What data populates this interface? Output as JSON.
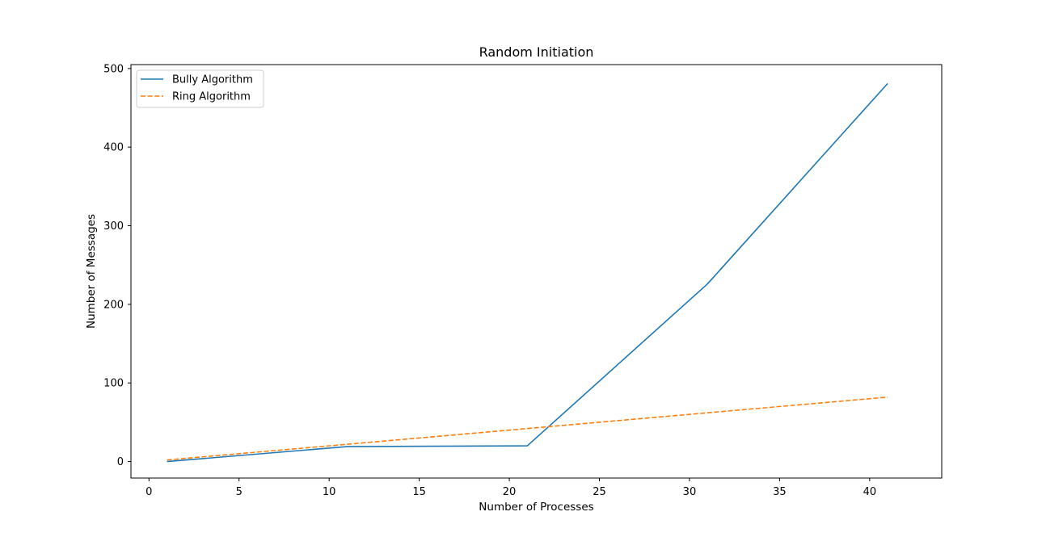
{
  "chart_data": {
    "type": "line",
    "title": "Random Initiation",
    "xlabel": "Number of Processes",
    "ylabel": "Number of Messages",
    "xlim": [
      -1,
      44
    ],
    "ylim": [
      -21,
      505
    ],
    "xticks": [
      0,
      5,
      10,
      15,
      20,
      25,
      30,
      35,
      40
    ],
    "yticks": [
      0,
      100,
      200,
      300,
      400,
      500
    ],
    "xtick_labels": [
      "0",
      "5",
      "10",
      "15",
      "20",
      "25",
      "30",
      "35",
      "40"
    ],
    "ytick_labels": [
      "0",
      "100",
      "200",
      "300",
      "400",
      "500"
    ],
    "grid": false,
    "legend_position": "upper-left",
    "series": [
      {
        "name": "Bully Algorithm",
        "color": "#1f77b4",
        "dash": "solid",
        "x": [
          1,
          11,
          21,
          31,
          41
        ],
        "y": [
          0,
          19,
          20,
          226,
          481
        ]
      },
      {
        "name": "Ring Algorithm",
        "color": "#ff7f0e",
        "dash": "dashed",
        "x": [
          1,
          11,
          21,
          31,
          41
        ],
        "y": [
          2,
          22,
          42,
          62,
          82
        ]
      }
    ]
  }
}
